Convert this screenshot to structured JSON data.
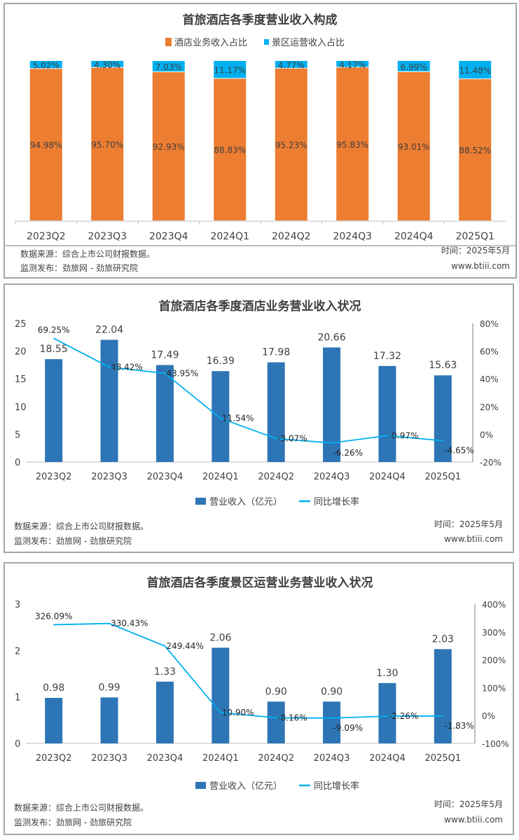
{
  "colors": {
    "hotel_share": "#ed7d31",
    "scenic_share": "#00b0f0",
    "revenue_bar": "#2e75b6",
    "growth_line": "#00b0f0",
    "text": "#404040",
    "axis": "#bfbfbf"
  },
  "footer": {
    "source": "数据来源：综合上市公司财报数据。",
    "publisher": "监测发布：劲旅网 - 劲旅研究院",
    "date": "时间：2025年5月",
    "website": "www.btiii.com"
  },
  "chart_data": [
    {
      "type": "bar",
      "stacked": true,
      "title": "首旅酒店各季度营业收入构成",
      "legend_position": "top",
      "categories": [
        "2023Q2",
        "2023Q3",
        "2023Q4",
        "2024Q1",
        "2024Q2",
        "2024Q3",
        "2024Q4",
        "2025Q1"
      ],
      "ylim": [
        0,
        100
      ],
      "series": [
        {
          "name": "酒店业务收入占比",
          "values": [
            94.98,
            95.7,
            92.93,
            88.83,
            95.23,
            95.83,
            93.01,
            88.52
          ],
          "labels": [
            "94.98%",
            "95.70%",
            "92.93%",
            "88.83%",
            "95.23%",
            "95.83%",
            "93.01%",
            "88.52%"
          ]
        },
        {
          "name": "景区运营收入占比",
          "values": [
            5.02,
            4.3,
            7.03,
            11.17,
            4.77,
            4.17,
            6.99,
            11.48
          ],
          "labels": [
            "5.02%",
            "4.30%",
            "7.03%",
            "11.17%",
            "4.77%",
            "4.17%",
            "6.99%",
            "11.48%"
          ]
        }
      ]
    },
    {
      "type": "bar",
      "combo": "bar+line",
      "title": "首旅酒店各季度酒店业务营业收入状况",
      "legend_position": "bottom",
      "categories": [
        "2023Q2",
        "2023Q3",
        "2023Q4",
        "2024Q1",
        "2024Q2",
        "2024Q3",
        "2024Q4",
        "2025Q1"
      ],
      "ylim": [
        0,
        25
      ],
      "yticks": [
        "0",
        "5",
        "10",
        "15",
        "20",
        "25"
      ],
      "y2lim": [
        -20,
        80
      ],
      "y2ticks": [
        "-20%",
        "0%",
        "20%",
        "40%",
        "60%",
        "80%"
      ],
      "series": [
        {
          "name": "营业收入（亿元）",
          "type": "bar",
          "values": [
            18.55,
            22.04,
            17.49,
            16.39,
            17.98,
            20.66,
            17.32,
            15.63
          ],
          "labels": [
            "18.55",
            "22.04",
            "17.49",
            "16.39",
            "17.98",
            "20.66",
            "17.32",
            "15.63"
          ]
        },
        {
          "name": "同比增长率",
          "type": "line",
          "axis": "right",
          "values": [
            69.25,
            48.42,
            43.95,
            11.54,
            -3.07,
            -6.26,
            -0.97,
            -4.65
          ],
          "labels": [
            "69.25%",
            "48.42%",
            "43.95%",
            "11.54%",
            "-3.07%",
            "-6.26%",
            "-0.97%",
            "-4.65%"
          ]
        }
      ]
    },
    {
      "type": "bar",
      "combo": "bar+line",
      "title": "首旅酒店各季度景区运营业务营业收入状况",
      "legend_position": "bottom",
      "categories": [
        "2023Q2",
        "2023Q3",
        "2023Q4",
        "2024Q1",
        "2024Q2",
        "2024Q3",
        "2024Q4",
        "2025Q1"
      ],
      "ylim": [
        0,
        3
      ],
      "yticks": [
        "0",
        "1",
        "2",
        "3"
      ],
      "y2lim": [
        -100,
        400
      ],
      "y2ticks": [
        "-100%",
        "0%",
        "100%",
        "200%",
        "300%",
        "400%"
      ],
      "series": [
        {
          "name": "营业收入（亿元）",
          "type": "bar",
          "values": [
            0.98,
            0.99,
            1.33,
            2.06,
            0.9,
            0.9,
            1.3,
            2.03
          ],
          "labels": [
            "0.98",
            "0.99",
            "1.33",
            "2.06",
            "0.90",
            "0.90",
            "1.30",
            "2.03"
          ]
        },
        {
          "name": "同比增长率",
          "type": "line",
          "axis": "right",
          "values": [
            326.09,
            330.43,
            249.44,
            10.9,
            -8.16,
            -9.09,
            -2.26,
            -1.83
          ],
          "labels": [
            "326.09%",
            "330.43%",
            "249.44%",
            "10.90%",
            "-8.16%",
            "-9.09%",
            "-2.26%",
            "-1.83%"
          ]
        }
      ]
    }
  ]
}
